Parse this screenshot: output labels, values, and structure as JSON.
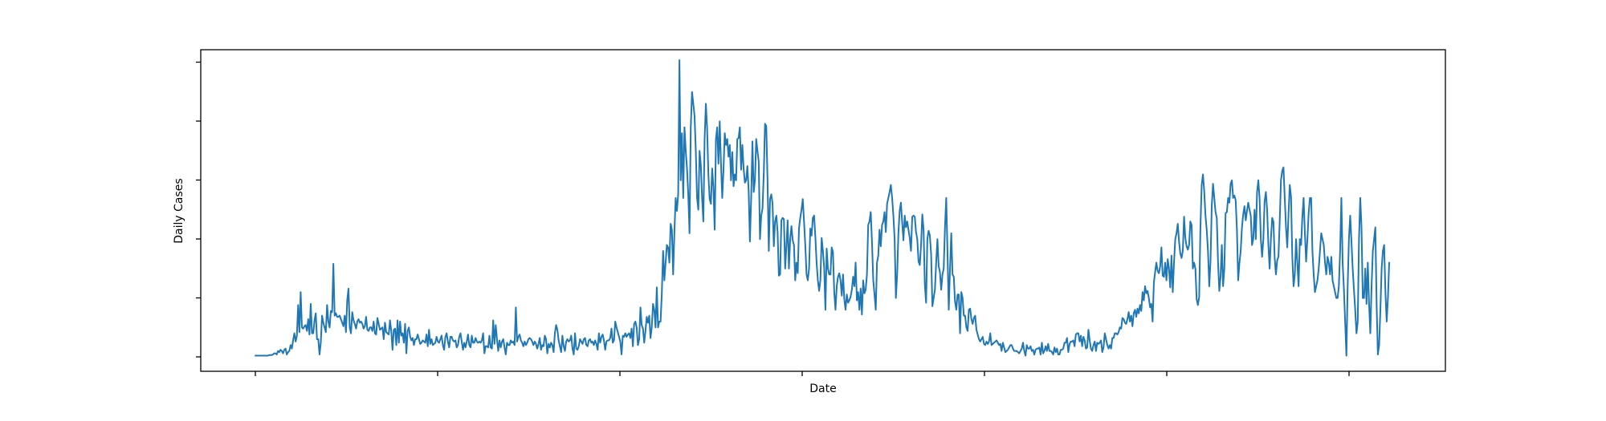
{
  "chart_data": {
    "type": "line",
    "title": "",
    "xlabel": "Date",
    "ylabel": "Daily Cases",
    "x_tick_labels_visible": false,
    "y_tick_labels_visible": false,
    "grid": false,
    "legend": "none",
    "x_tick_count": 7,
    "y_tick_count": 6,
    "ylim": [
      0,
      500
    ],
    "series": [
      {
        "color": "#1f77b4",
        "values": [
          2,
          2,
          2,
          2,
          2,
          2,
          2,
          2,
          2,
          2,
          2,
          3,
          3,
          3,
          4,
          6,
          6,
          4,
          10,
          8,
          12,
          10,
          6,
          12,
          14,
          4,
          8,
          10,
          20,
          14,
          28,
          40,
          26,
          36,
          88,
          42,
          110,
          50,
          48,
          52,
          54,
          44,
          64,
          38,
          90,
          40,
          40,
          62,
          74,
          30,
          30,
          4,
          24,
          70,
          58,
          50,
          42,
          88,
          60,
          50,
          78,
          76,
          158,
          70,
          74,
          68,
          68,
          70,
          64,
          58,
          52,
          70,
          42,
          96,
          116,
          50,
          40,
          76,
          62,
          56,
          48,
          60,
          64,
          58,
          60,
          56,
          48,
          52,
          68,
          46,
          44,
          50,
          50,
          44,
          60,
          40,
          38,
          66,
          56,
          46,
          48,
          50,
          30,
          58,
          42,
          40,
          38,
          62,
          44,
          12,
          46,
          48,
          20,
          62,
          24,
          60,
          36,
          40,
          24,
          56,
          6,
          44,
          50,
          34,
          28,
          32,
          20,
          30,
          30,
          38,
          30,
          22,
          24,
          28,
          26,
          24,
          38,
          18,
          46,
          22,
          30,
          20,
          22,
          24,
          34,
          26,
          24,
          30,
          36,
          20,
          12,
          34,
          40,
          26,
          16,
          34,
          34,
          28,
          26,
          28,
          16,
          20,
          34,
          40,
          26,
          12,
          24,
          16,
          26,
          38,
          20,
          16,
          36,
          24,
          24,
          32,
          26,
          24,
          26,
          24,
          28,
          40,
          6,
          18,
          18,
          16,
          36,
          16,
          14,
          62,
          22,
          54,
          30,
          10,
          28,
          16,
          26,
          30,
          16,
          4,
          24,
          20,
          20,
          28,
          24,
          26,
          20,
          84,
          26,
          34,
          38,
          28,
          24,
          18,
          26,
          20,
          24,
          30,
          32,
          30,
          26,
          20,
          26,
          22,
          14,
          22,
          32,
          12,
          20,
          18,
          36,
          30,
          6,
          22,
          16,
          24,
          20,
          8,
          40,
          54,
          46,
          28,
          18,
          8,
          36,
          18,
          10,
          26,
          30,
          26,
          28,
          36,
          14,
          4,
          40,
          14,
          12,
          18,
          30,
          26,
          22,
          30,
          32,
          20,
          18,
          28,
          30,
          24,
          26,
          20,
          28,
          22,
          12,
          40,
          24,
          34,
          38,
          28,
          12,
          26,
          28,
          28,
          32,
          48,
          24,
          28,
          60,
          50,
          42,
          34,
          26,
          4,
          36,
          34,
          40,
          34,
          38,
          40,
          32,
          48,
          18,
          56,
          60,
          50,
          20,
          30,
          84,
          54,
          48,
          24,
          44,
          68,
          58,
          70,
          32,
          50,
          90,
          80,
          50,
          118,
          50,
          60,
          60,
          108,
          180,
          130,
          160,
          190,
          186,
          160,
          226,
          216,
          140,
          212,
          270,
          248,
          276,
          504,
          300,
          380,
          270,
          390,
          350,
          320,
          276,
          210,
          390,
          450,
          430,
          410,
          350,
          270,
          250,
          350,
          326,
          270,
          230,
          370,
          430,
          388,
          310,
          268,
          260,
          320,
          288,
          216,
          370,
          390,
          328,
          400,
          330,
          270,
          318,
          380,
          360,
          370,
          340,
          360,
          300,
          348,
          290,
          310,
          300,
          370,
          372,
          390,
          318,
          360,
          320,
          296,
          300,
          324,
          282,
          196,
          270,
          366,
          280,
          300,
          370,
          350,
          332,
          200,
          240,
          252,
          310,
          396,
          392,
          300,
          180,
          268,
          276,
          260,
          188,
          230,
          240,
          212,
          138,
          140,
          232,
          236,
          234,
          150,
          188,
          232,
          150,
          200,
          222,
          198,
          190,
          130,
          160,
          142,
          218,
          236,
          250,
          268,
          230,
          190,
          140,
          130,
          150,
          218,
          206,
          236,
          240,
          204,
          160,
          130,
          112,
          130,
          202,
          180,
          152,
          80,
          184,
          150,
          140,
          140,
          186,
          178,
          110,
          80,
          120,
          136,
          142,
          130,
          104,
          140,
          98,
          80,
          106,
          92,
          96,
          102,
          114,
          136,
          120,
          160,
          96,
          110,
          80,
          116,
          72,
          130,
          108,
          114,
          140,
          224,
          230,
          246,
          196,
          130,
          106,
          80,
          160,
          172,
          216,
          188,
          224,
          230,
          246,
          212,
          260,
          270,
          280,
          292,
          270,
          240,
          200,
          100,
          140,
          210,
          248,
          262,
          228,
          198,
          240,
          220,
          230,
          216,
          202,
          180,
          238,
          240,
          238,
          212,
          200,
          162,
          156,
          190,
          242,
          216,
          122,
          92,
          200,
          214,
          206,
          174,
          86,
          100,
          114,
          160,
          200,
          154,
          144,
          114,
          140,
          150,
          220,
          270,
          178,
          80,
          150,
          210,
          140,
          136,
          94,
          80,
          106,
          106,
          40,
          110,
          100,
          70,
          70,
          50,
          44,
          80,
          82,
          64,
          56,
          66,
          70,
          46,
          38,
          30,
          26,
          30,
          34,
          22,
          20,
          26,
          22,
          26,
          40,
          20,
          22,
          24,
          26,
          28,
          24,
          20,
          22,
          10,
          24,
          16,
          8,
          10,
          12,
          16,
          20,
          20,
          14,
          10,
          10,
          10,
          8,
          6,
          10,
          14,
          24,
          10,
          2,
          20,
          14,
          14,
          18,
          10,
          12,
          4,
          12,
          14,
          14,
          16,
          4,
          24,
          6,
          10,
          18,
          10,
          22,
          10,
          10,
          8,
          4,
          16,
          8,
          14,
          4,
          4,
          12,
          12,
          14,
          24,
          24,
          32,
          8,
          22,
          26,
          26,
          28,
          18,
          38,
          40,
          40,
          26,
          36,
          18,
          34,
          28,
          14,
          16,
          46,
          28,
          14,
          10,
          20,
          26,
          10,
          24,
          22,
          24,
          28,
          8,
          16,
          40,
          30,
          20,
          14,
          20,
          14,
          32,
          32,
          40,
          40,
          38,
          42,
          50,
          48,
          66,
          64,
          58,
          56,
          64,
          76,
          60,
          70,
          52,
          74,
          80,
          68,
          82,
          74,
          88,
          78,
          110,
          96,
          120,
          108,
          112,
          100,
          84,
          90,
          60,
          126,
          144,
          160,
          146,
          142,
          154,
          186,
          138,
          136,
          160,
          130,
          166,
          150,
          118,
          172,
          110,
          160,
          200,
          210,
          226,
          196,
          176,
          168,
          180,
          238,
          202,
          188,
          182,
          190,
          230,
          224,
          150,
          160,
          150,
          98,
          88,
          102,
          220,
          292,
          310,
          282,
          240,
          216,
          180,
          120,
          162,
          256,
          294,
          270,
          246,
          236,
          160,
          112,
          136,
          190,
          120,
          150,
          244,
          246,
          270,
          262,
          294,
          300,
          270,
          274,
          266,
          216,
          130,
          160,
          180,
          220,
          242,
          256,
          232,
          248,
          262,
          250,
          240,
          190,
          200,
          250,
          200,
          280,
          300,
          270,
          200,
          170,
          200,
          264,
          280,
          250,
          190,
          150,
          200,
          236,
          230,
          168,
          140,
          164,
          170,
          230,
          300,
          316,
          322,
          270,
          220,
          186,
          242,
          292,
          272,
          170,
          120,
          140,
          200,
          160,
          120,
          200,
          190,
          238,
          270,
          210,
          162,
          200,
          244,
          270,
          270,
          180,
          140,
          110,
          120,
          130,
          150,
          180,
          210,
          200,
          190,
          160,
          140,
          170,
          160,
          140,
          170,
          130,
          120,
          110,
          100,
          100,
          120,
          180,
          270,
          160,
          116,
          60,
          2,
          120,
          200,
          240,
          196,
          150,
          114,
          80,
          40,
          60,
          200,
          270,
          220,
          100,
          100,
          150,
          90,
          160,
          90,
          40,
          120,
          180,
          200,
          220,
          90,
          4,
          20,
          80,
          150,
          180,
          190,
          110,
          60,
          100,
          160
        ]
      }
    ]
  }
}
